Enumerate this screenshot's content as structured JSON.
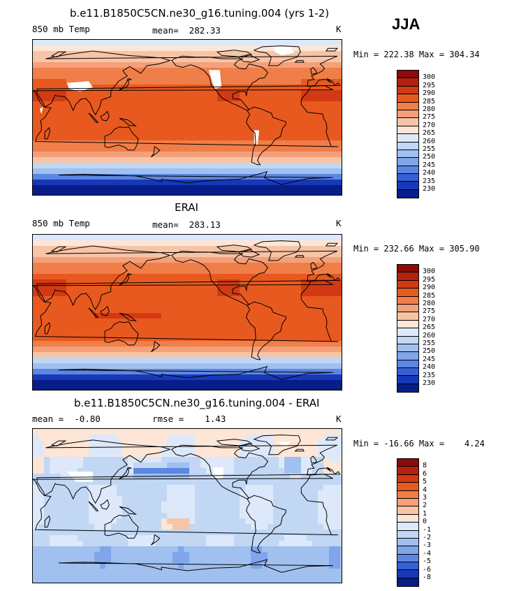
{
  "season": "JJA",
  "panels": [
    {
      "title": "b.e11.B1850C5CN.ne30_g16.tuning.004 (yrs 1-2)",
      "left_label": "850 mb Temp",
      "center_label": "mean=  282.33",
      "units": "K",
      "minmax": "Min = 222.38 Max = 304.34",
      "field": "model"
    },
    {
      "title": "ERAI",
      "left_label": "850 mb Temp",
      "center_label": "mean=  283.13",
      "units": "K",
      "minmax": "Min = 232.66 Max = 305.90",
      "field": "obs"
    },
    {
      "title": "b.e11.B1850C5CN.ne30_g16.tuning.004 - ERAI",
      "left_label": "mean =  -0.80",
      "center_label": "rmse =    1.43",
      "units": "K",
      "minmax": "Min = -16.66 Max =    4.24",
      "field": "diff"
    }
  ],
  "colorbars": {
    "temperature": {
      "levels": [
        "300",
        "295",
        "290",
        "285",
        "280",
        "275",
        "270",
        "265",
        "260",
        "255",
        "250",
        "245",
        "240",
        "235",
        "230"
      ],
      "colors": [
        "#8c0a0a",
        "#b4210f",
        "#d23a13",
        "#e8591f",
        "#f07e48",
        "#f4a07a",
        "#f8c4a6",
        "#fde6d6",
        "#dde9fa",
        "#c1d7f4",
        "#a0c0ef",
        "#7fa5ea",
        "#5c86e3",
        "#3560d6",
        "#1739b8",
        "#061d8a"
      ]
    },
    "difference": {
      "levels": [
        "8",
        "6",
        "5",
        "4",
        "3",
        "2",
        "1",
        "0",
        "-1",
        "-2",
        "-3",
        "-4",
        "-5",
        "-6",
        "-8"
      ],
      "colors": [
        "#8c0a0a",
        "#b4210f",
        "#d23a13",
        "#e8591f",
        "#f07e48",
        "#f4a07a",
        "#f8c4a6",
        "#fde6d6",
        "#dde9fa",
        "#c1d7f4",
        "#a0c0ef",
        "#7fa5ea",
        "#5c86e3",
        "#3560d6",
        "#1739b8",
        "#061d8a"
      ]
    }
  }
}
